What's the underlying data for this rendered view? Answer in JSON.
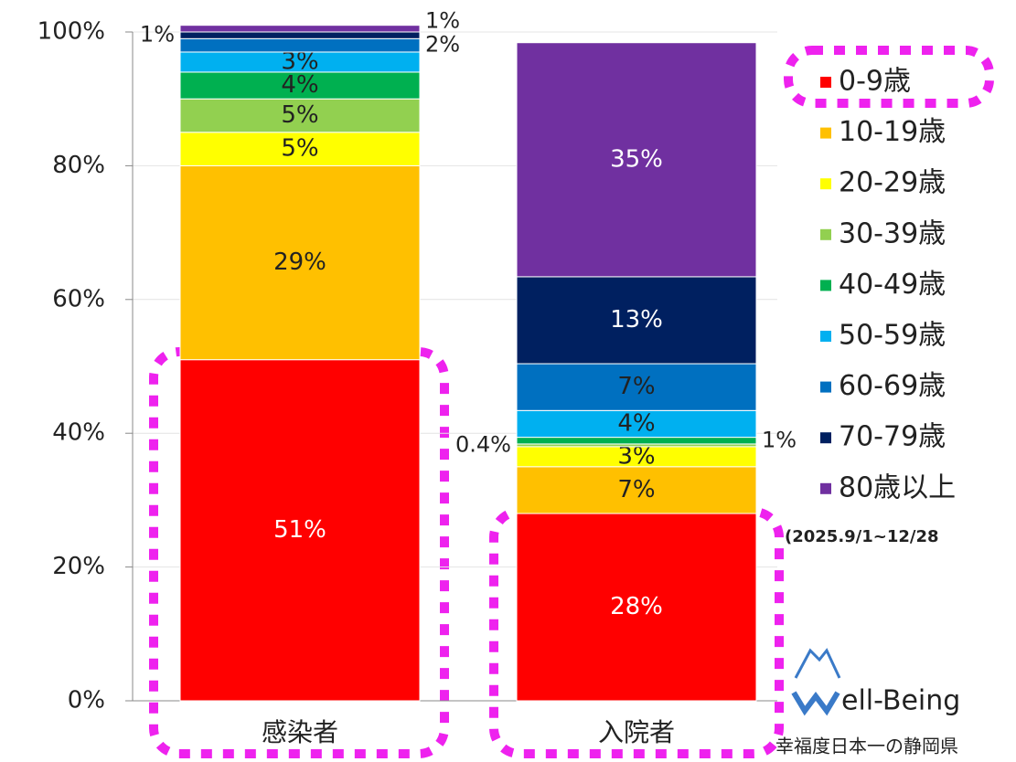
{
  "chart_data": {
    "type": "stacked_bar",
    "categories": [
      "感染者",
      "入院者"
    ],
    "series": [
      {
        "name": "0-9歳",
        "color": "#ff0000",
        "values": [
          51,
          28
        ],
        "value_labels": [
          "51%",
          "28%"
        ]
      },
      {
        "name": "10-19歳",
        "color": "#ffc000",
        "values": [
          29,
          7
        ],
        "value_labels": [
          "29%",
          "7%"
        ]
      },
      {
        "name": "20-29歳",
        "color": "#ffff00",
        "values": [
          5,
          3
        ],
        "value_labels": [
          "5%",
          "3%"
        ]
      },
      {
        "name": "30-39歳",
        "color": "#92d050",
        "values": [
          5,
          0.4
        ],
        "value_labels": [
          "5%",
          "0.4%"
        ]
      },
      {
        "name": "40-49歳",
        "color": "#00b050",
        "values": [
          4,
          1
        ],
        "value_labels": [
          "4%",
          "1%"
        ]
      },
      {
        "name": "50-59歳",
        "color": "#00b0f0",
        "values": [
          3,
          4
        ],
        "value_labels": [
          "3%",
          "4%"
        ]
      },
      {
        "name": "60-69歳",
        "color": "#0070c0",
        "values": [
          2,
          7
        ],
        "value_labels": [
          "2%",
          "7%"
        ]
      },
      {
        "name": "70-79歳",
        "color": "#002060",
        "values": [
          1,
          13
        ],
        "value_labels": [
          "1%",
          "13%"
        ]
      },
      {
        "name": "80歳以上",
        "color": "#7030a0",
        "values": [
          1,
          35
        ],
        "value_labels": [
          "1%",
          "35%"
        ]
      }
    ],
    "ylim": [
      0,
      100
    ],
    "yticks": [
      {
        "value": 0,
        "label": "0%"
      },
      {
        "value": 20,
        "label": "20%"
      },
      {
        "value": 40,
        "label": "40%"
      },
      {
        "value": 60,
        "label": "60%"
      },
      {
        "value": 80,
        "label": "80%"
      },
      {
        "value": 100,
        "label": "100%"
      }
    ],
    "grid": true,
    "legend": "right",
    "note": "(2025.9/1~12/28",
    "logo_text": "ell-Being",
    "logo_subtitle": "幸福度日本一の静岡県"
  }
}
